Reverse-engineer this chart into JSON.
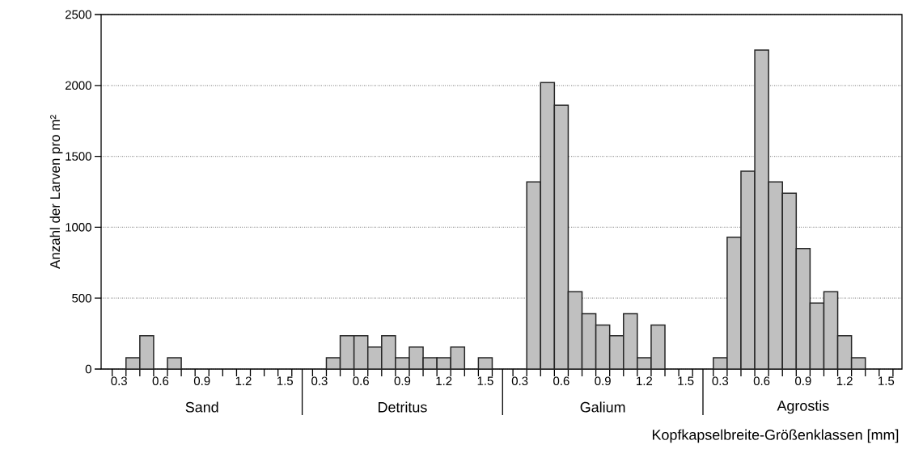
{
  "chart_data": {
    "type": "bar",
    "xlabel": "Kopfkapselbreite-Größenklassen [mm]",
    "ylabel": "Anzahl der Larven pro m²",
    "categories": [
      "0.3",
      null,
      null,
      "0.6",
      null,
      null,
      "0.9",
      null,
      null,
      "1.2",
      null,
      null,
      "1.5",
      "0.3",
      null,
      null,
      "0.6",
      null,
      null,
      "0.9",
      null,
      null,
      "1.2",
      null,
      null,
      "1.5",
      "0.3",
      null,
      null,
      "0.6",
      null,
      null,
      "0.9",
      null,
      null,
      "1.2",
      null,
      null,
      "1.5",
      "0.3",
      null,
      null,
      "0.6",
      null,
      null,
      "0.9",
      null,
      null,
      "1.2",
      null,
      null,
      "1.5"
    ],
    "values": [
      0,
      80,
      235,
      0,
      80,
      0,
      0,
      0,
      0,
      0,
      0,
      0,
      0,
      0,
      80,
      235,
      235,
      155,
      235,
      80,
      155,
      80,
      80,
      155,
      0,
      80,
      0,
      1320,
      2020,
      1860,
      545,
      390,
      310,
      235,
      390,
      80,
      310,
      0,
      0,
      80,
      930,
      1395,
      2250,
      1320,
      1240,
      850,
      465,
      545,
      235,
      80,
      0,
      0
    ],
    "color": "#c0c0c0",
    "annotations": [
      "Sand",
      "Detritus",
      "Galium",
      "Agrostis"
    ],
    "ylim": [
      0,
      2500
    ],
    "yticks": [
      0,
      500,
      1000,
      1500,
      2000,
      2500
    ],
    "grid": "y"
  }
}
